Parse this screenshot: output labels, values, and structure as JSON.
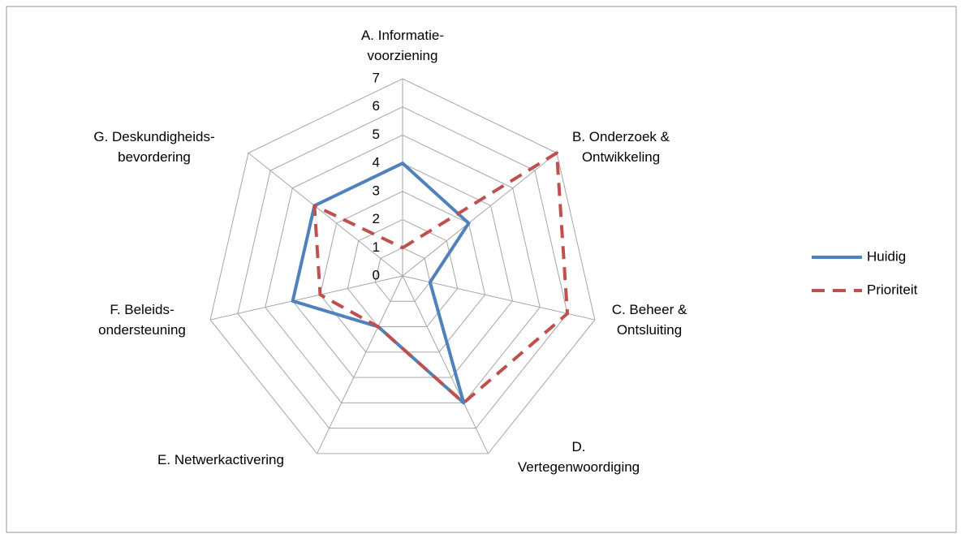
{
  "chart_data": {
    "type": "radar",
    "categories": [
      "A. Informatie-\nvoorziening",
      "B. Onderzoek &\nOntwikkeling",
      "C. Beheer &\nOntsluiting",
      "D.\nVertegenwoordiging",
      "E. Netwerkactivering",
      "F. Beleids-\nondersteuning",
      "G. Deskundigheids-\nbevordering"
    ],
    "series": [
      {
        "name": "Huidig",
        "color": "#4f81bd",
        "dash": "solid",
        "values": [
          4,
          3,
          1,
          5,
          2,
          4,
          4
        ]
      },
      {
        "name": "Prioriteit",
        "color": "#c0504d",
        "dash": "dashed",
        "values": [
          1,
          7,
          6,
          5,
          2,
          3,
          4
        ]
      }
    ],
    "ylim": [
      0,
      7
    ],
    "yticks": [
      0,
      1,
      2,
      3,
      4,
      5,
      6,
      7
    ],
    "grid": true,
    "legend": "right"
  }
}
